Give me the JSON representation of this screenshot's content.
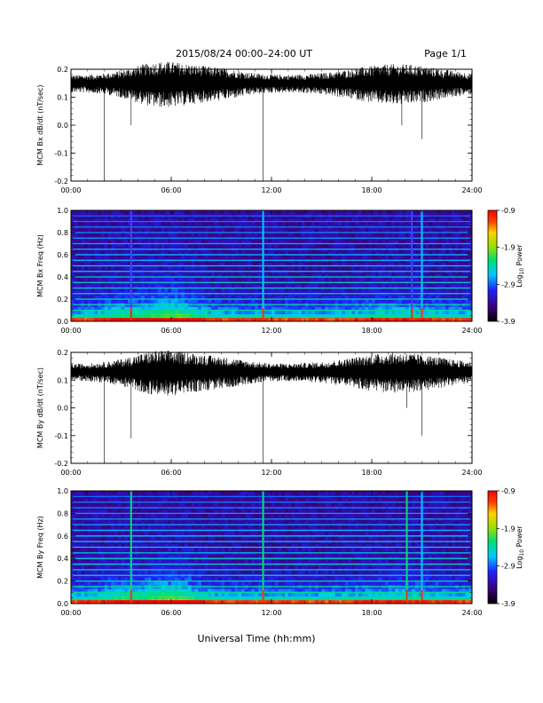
{
  "header": {
    "title": "2015/08/24  00:00–24:00 UT",
    "page": "Page 1/1"
  },
  "footer": {
    "xlabel": "Universal Time (hh:mm)"
  },
  "colors": {
    "trace": "#000000",
    "colorscale": [
      "#000000",
      "#3a0070",
      "#2020ff",
      "#00c8ff",
      "#00e070",
      "#a0e000",
      "#ffd000",
      "#ff4000",
      "#ff0000"
    ]
  },
  "chart_data": [
    {
      "id": "bx_line",
      "type": "line",
      "ylabel": "MCM Bx dB/dt (nT/sec)",
      "xlim": [
        "00:00",
        "24:00"
      ],
      "ylim": [
        -0.2,
        0.2
      ],
      "yticks": [
        0.2,
        0.1,
        0.0,
        -0.1,
        -0.2
      ],
      "ytick_labels": [
        "0.2",
        "0.1",
        "0.0",
        "-0.1",
        "-0.2"
      ],
      "xticks": [
        "00:00",
        "06:00",
        "12:00",
        "18:00",
        "24:00"
      ],
      "baseline": 0.15,
      "spikes": [
        {
          "time": 2.0,
          "value": -0.2
        },
        {
          "time": 3.6,
          "value": 0.0
        },
        {
          "time": 11.5,
          "value": -0.2
        },
        {
          "time": 19.8,
          "value": 0.0
        },
        {
          "time": 21.0,
          "value": -0.05
        }
      ]
    },
    {
      "id": "bx_spec",
      "type": "heatmap",
      "ylabel": "MCM Bx Freq (Hz)",
      "xlim": [
        "00:00",
        "24:00"
      ],
      "ylim": [
        0.0,
        1.0
      ],
      "yticks": [
        1.0,
        0.8,
        0.6,
        0.4,
        0.2,
        0.0
      ],
      "ytick_labels": [
        "1.0",
        "0.8",
        "0.6",
        "0.4",
        "0.2",
        "0.0"
      ],
      "xticks": [
        "00:00",
        "06:00",
        "12:00",
        "18:00",
        "24:00"
      ],
      "colorbar": {
        "label": "Log10 Power",
        "label_main": "Log",
        "label_sub": "10",
        "label_rest": " Power",
        "min": -3.9,
        "max": -0.9,
        "ticks": [
          "-0.9",
          "-1.9",
          "-2.9",
          "-3.9"
        ]
      },
      "harmonic_lines_hz": [
        0.05,
        0.1,
        0.15,
        0.2,
        0.25,
        0.3,
        0.35,
        0.4,
        0.45,
        0.5,
        0.55,
        0.6,
        0.65,
        0.7,
        0.75,
        0.8,
        0.85,
        0.9,
        0.95
      ],
      "vertical_lines": [
        {
          "time": 3.6,
          "color": "#4040ff"
        },
        {
          "time": 11.5,
          "color": "#00c8ff"
        },
        {
          "time": 20.4,
          "color": "#4040ff"
        },
        {
          "time": 21.0,
          "color": "#00c8ff"
        }
      ]
    },
    {
      "id": "by_line",
      "type": "line",
      "ylabel": "MCM By dB/dt (nT/sec)",
      "xlim": [
        "00:00",
        "24:00"
      ],
      "ylim": [
        -0.2,
        0.2
      ],
      "yticks": [
        0.2,
        0.1,
        0.0,
        -0.1,
        -0.2
      ],
      "ytick_labels": [
        "0.2",
        "0.1",
        "0.0",
        "-0.1",
        "-0.2"
      ],
      "xticks": [
        "00:00",
        "06:00",
        "12:00",
        "18:00",
        "24:00"
      ],
      "baseline": 0.13,
      "spikes": [
        {
          "time": 2.0,
          "value": -0.2
        },
        {
          "time": 3.6,
          "value": -0.11
        },
        {
          "time": 11.5,
          "value": -0.2
        },
        {
          "time": 20.1,
          "value": 0.0
        },
        {
          "time": 21.0,
          "value": -0.1
        }
      ]
    },
    {
      "id": "by_spec",
      "type": "heatmap",
      "ylabel": "MCM By Freq (Hz)",
      "xlim": [
        "00:00",
        "24:00"
      ],
      "ylim": [
        0.0,
        1.0
      ],
      "yticks": [
        1.0,
        0.8,
        0.6,
        0.4,
        0.2,
        0.0
      ],
      "ytick_labels": [
        "1.0",
        "0.8",
        "0.6",
        "0.4",
        "0.2",
        "0.0"
      ],
      "xticks": [
        "00:00",
        "06:00",
        "12:00",
        "18:00",
        "24:00"
      ],
      "colorbar": {
        "label": "Log10 Power",
        "label_main": "Log",
        "label_sub": "10",
        "label_rest": " Power",
        "min": -3.9,
        "max": -0.9,
        "ticks": [
          "-0.9",
          "-1.9",
          "-2.9",
          "-3.9"
        ]
      },
      "harmonic_lines_hz": [
        0.05,
        0.1,
        0.15,
        0.2,
        0.25,
        0.3,
        0.35,
        0.4,
        0.45,
        0.5,
        0.55,
        0.6,
        0.65,
        0.7,
        0.75,
        0.8,
        0.85,
        0.9,
        0.95
      ],
      "vertical_lines": [
        {
          "time": 3.6,
          "color": "#00e070"
        },
        {
          "time": 11.5,
          "color": "#00e070"
        },
        {
          "time": 20.1,
          "color": "#00e070"
        },
        {
          "time": 21.0,
          "color": "#00c8ff"
        }
      ]
    }
  ]
}
